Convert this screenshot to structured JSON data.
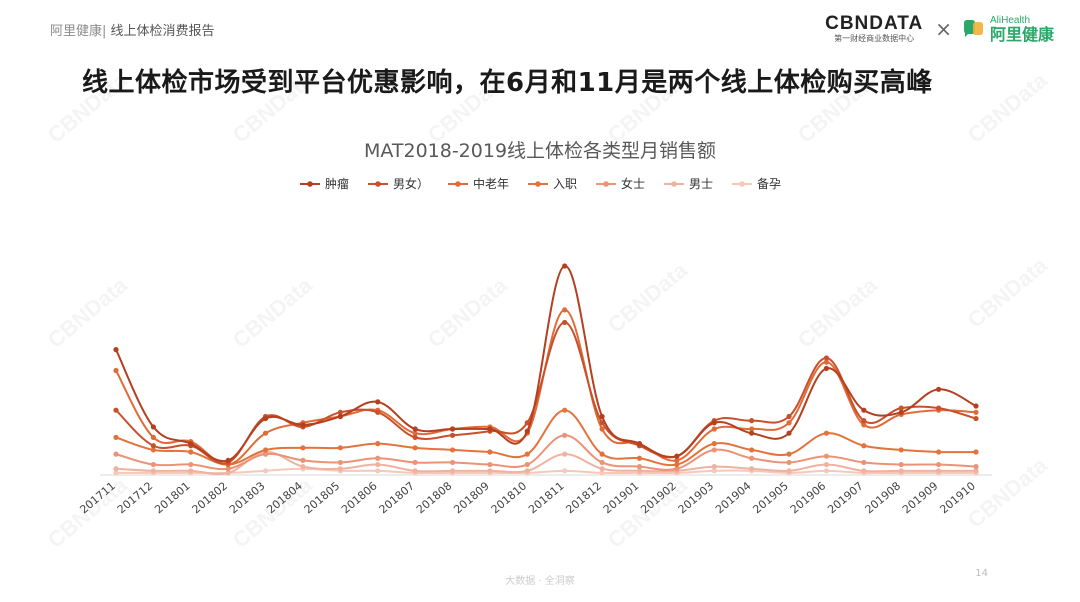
{
  "header": {
    "brand": "阿里健康",
    "separator": "|",
    "report": "线上体检消费报告"
  },
  "logos": {
    "cbndata": "CBNDATA",
    "cbndata_sub": "第一财经商业数据中心",
    "times": "×",
    "alihealth_en": "AliHealth",
    "alihealth_cn": "阿里健康"
  },
  "headline": "线上体检市场受到平台优惠影响，在6月和11月是两个线上体检购买高峰",
  "footer": {
    "center": "大数据 · 全洞察",
    "page": "14"
  },
  "watermark": "CBNData",
  "colors": {
    "肿瘤": "#b5401f",
    "男女": "#c8502a",
    "中老年": "#e06a38",
    "入职": "#e3733c",
    "女士": "#eb9277",
    "男士": "#f0b2a0",
    "备孕": "#f5c8b8"
  },
  "chart_data": {
    "type": "line",
    "title": "MAT2018-2019线上体检各类型月销售额",
    "xlabel": "",
    "ylabel": "",
    "grid": false,
    "legend_position": "top",
    "y_axis_visible": false,
    "ylim": [
      0,
      100
    ],
    "categories": [
      "201711",
      "201712",
      "201801",
      "201802",
      "201803",
      "201804",
      "201805",
      "201806",
      "201807",
      "201808",
      "201809",
      "201810",
      "201811",
      "201812",
      "201901",
      "201902",
      "201903",
      "201904",
      "201905",
      "201906",
      "201907",
      "201908",
      "201909",
      "201910"
    ],
    "series": [
      {
        "name": "肿瘤",
        "values": [
          60,
          23,
          15,
          7,
          27,
          24,
          28,
          35,
          22,
          22,
          22,
          21,
          100,
          28,
          15,
          9,
          25,
          20,
          20,
          51,
          31,
          30,
          41,
          33
        ]
      },
      {
        "name": "男女）",
        "values": [
          31,
          14,
          14,
          6,
          28,
          23,
          30,
          30,
          18,
          19,
          21,
          25,
          73,
          25,
          14,
          9,
          26,
          26,
          28,
          56,
          26,
          32,
          32,
          27
        ]
      },
      {
        "name": "中老年",
        "values": [
          50,
          18,
          16,
          5,
          20,
          25,
          28,
          31,
          20,
          22,
          23,
          20,
          79,
          22,
          15,
          7,
          22,
          22,
          25,
          54,
          24,
          29,
          31,
          30
        ]
      },
      {
        "name": "入职",
        "values": [
          18,
          12,
          11,
          5,
          12,
          13,
          13,
          15,
          13,
          12,
          11,
          10,
          31,
          10,
          8,
          5,
          15,
          12,
          10,
          20,
          14,
          12,
          11,
          11
        ]
      },
      {
        "name": "女士",
        "values": [
          10,
          5,
          5,
          3,
          10,
          7,
          6,
          8,
          6,
          6,
          5,
          5,
          19,
          6,
          4,
          3,
          12,
          8,
          6,
          9,
          6,
          5,
          5,
          4
        ]
      },
      {
        "name": "男士",
        "values": [
          3,
          2,
          2,
          1,
          11,
          4,
          3,
          5,
          2,
          2,
          2,
          2,
          10,
          3,
          2,
          2,
          4,
          3,
          2,
          5,
          2,
          2,
          2,
          2
        ]
      },
      {
        "name": "备孕",
        "values": [
          1,
          1,
          1,
          1,
          2,
          3,
          2,
          2,
          1,
          1,
          1,
          1,
          2,
          1,
          1,
          1,
          2,
          2,
          1,
          2,
          1,
          1,
          1,
          1
        ]
      }
    ]
  }
}
